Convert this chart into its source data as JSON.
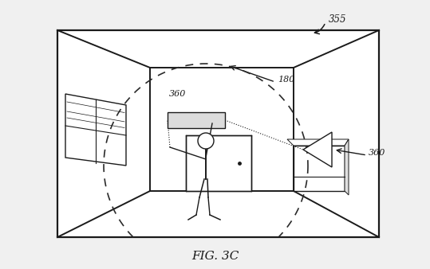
{
  "bg_color": "#f0f0f0",
  "figure_caption": "FIG. 3C",
  "label_355": "355",
  "label_180": "180",
  "label_360_inner": "360",
  "label_360_outer": "360",
  "line_color": "#1a1a1a",
  "dashed_color": "#2a2a2a",
  "title_fontsize": 11
}
